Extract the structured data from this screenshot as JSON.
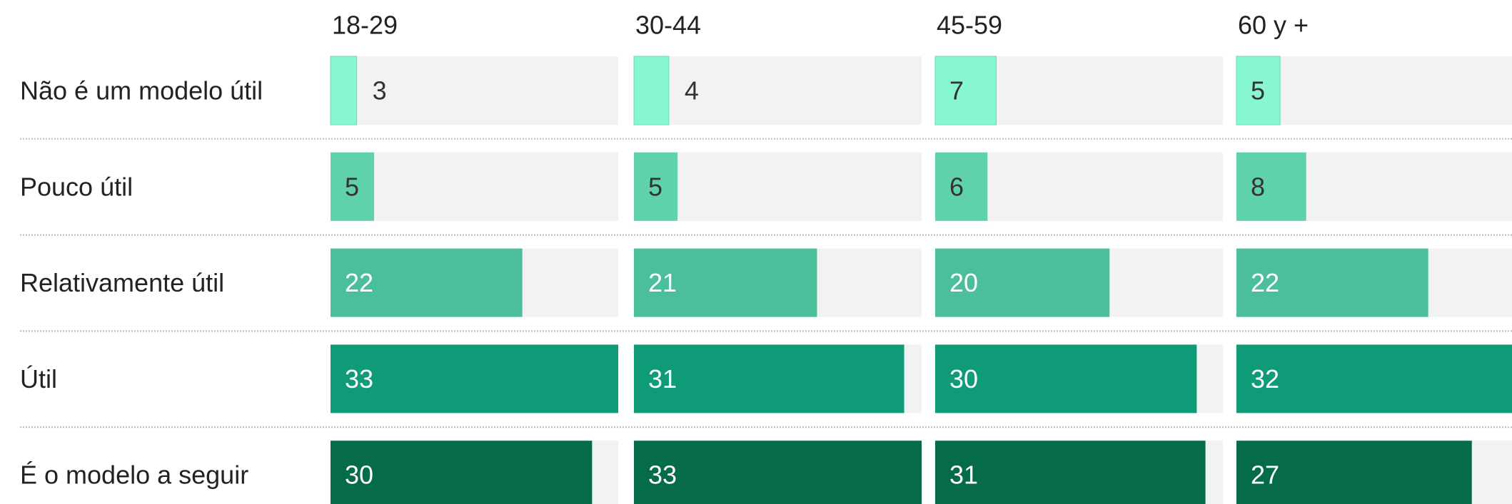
{
  "chart_data": {
    "type": "bar",
    "categories": [
      "Não é um modelo útil",
      "Pouco útil",
      "Relativamente útil",
      "Útil",
      "É o modelo a seguir"
    ],
    "colors": [
      "#86f7d0",
      "#5fd1ac",
      "#4bbf9b",
      "#0f9a78",
      "#066b4b"
    ],
    "label_colors": [
      "#333333",
      "#333333",
      "#ffffff",
      "#ffffff",
      "#ffffff"
    ],
    "series": [
      {
        "name": "18-29",
        "values": [
          3,
          5,
          22,
          33,
          30
        ]
      },
      {
        "name": "30-44",
        "values": [
          4,
          5,
          21,
          31,
          33
        ]
      },
      {
        "name": "45-59",
        "values": [
          7,
          6,
          20,
          30,
          31
        ]
      },
      {
        "name": "60 y +",
        "values": [
          5,
          8,
          22,
          32,
          27
        ]
      }
    ],
    "xlim": [
      0,
      33
    ]
  }
}
